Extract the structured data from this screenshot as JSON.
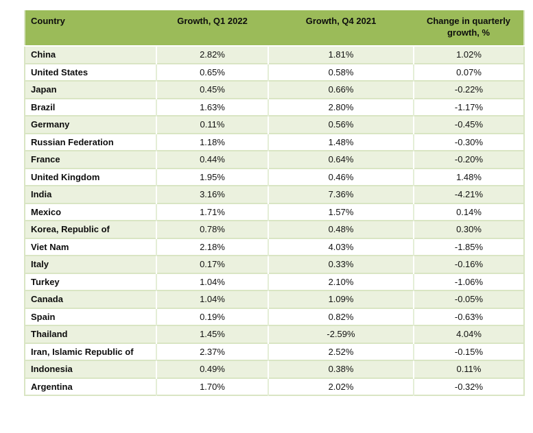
{
  "table": {
    "columns": [
      {
        "label": "Country"
      },
      {
        "label": "Growth, Q1 2022"
      },
      {
        "label": "Growth, Q4 2021"
      },
      {
        "label": "Change in quarterly growth, %"
      }
    ],
    "rows": [
      {
        "country": "China",
        "q1_2022": "2.82%",
        "q4_2021": "1.81%",
        "change": "1.02%"
      },
      {
        "country": "United States",
        "q1_2022": "0.65%",
        "q4_2021": "0.58%",
        "change": "0.07%"
      },
      {
        "country": "Japan",
        "q1_2022": "0.45%",
        "q4_2021": "0.66%",
        "change": "-0.22%"
      },
      {
        "country": "Brazil",
        "q1_2022": "1.63%",
        "q4_2021": "2.80%",
        "change": "-1.17%"
      },
      {
        "country": "Germany",
        "q1_2022": "0.11%",
        "q4_2021": "0.56%",
        "change": "-0.45%"
      },
      {
        "country": "Russian Federation",
        "q1_2022": "1.18%",
        "q4_2021": "1.48%",
        "change": "-0.30%"
      },
      {
        "country": "France",
        "q1_2022": "0.44%",
        "q4_2021": "0.64%",
        "change": "-0.20%"
      },
      {
        "country": "United Kingdom",
        "q1_2022": "1.95%",
        "q4_2021": "0.46%",
        "change": "1.48%"
      },
      {
        "country": "India",
        "q1_2022": "3.16%",
        "q4_2021": "7.36%",
        "change": "-4.21%"
      },
      {
        "country": "Mexico",
        "q1_2022": "1.71%",
        "q4_2021": "1.57%",
        "change": "0.14%"
      },
      {
        "country": "Korea, Republic of",
        "q1_2022": "0.78%",
        "q4_2021": "0.48%",
        "change": "0.30%"
      },
      {
        "country": "Viet Nam",
        "q1_2022": "2.18%",
        "q4_2021": "4.03%",
        "change": "-1.85%"
      },
      {
        "country": "Italy",
        "q1_2022": "0.17%",
        "q4_2021": "0.33%",
        "change": "-0.16%"
      },
      {
        "country": "Turkey",
        "q1_2022": "1.04%",
        "q4_2021": "2.10%",
        "change": "-1.06%"
      },
      {
        "country": "Canada",
        "q1_2022": "1.04%",
        "q4_2021": "1.09%",
        "change": "-0.05%"
      },
      {
        "country": "Spain",
        "q1_2022": "0.19%",
        "q4_2021": "0.82%",
        "change": "-0.63%"
      },
      {
        "country": "Thailand",
        "q1_2022": "1.45%",
        "q4_2021": "-2.59%",
        "change": "4.04%"
      },
      {
        "country": "Iran, Islamic Republic of",
        "q1_2022": "2.37%",
        "q4_2021": "2.52%",
        "change": "-0.15%"
      },
      {
        "country": "Indonesia",
        "q1_2022": "0.49%",
        "q4_2021": "0.38%",
        "change": "0.11%"
      },
      {
        "country": "Argentina",
        "q1_2022": "1.70%",
        "q4_2021": "2.02%",
        "change": "-0.32%"
      }
    ]
  },
  "colors": {
    "header_bg": "#9bbb59",
    "row_shaded_bg": "#ebf1de",
    "row_plain_bg": "#ffffff",
    "grid_line": "#d9e5c3",
    "shaded_row_vline": "#ffffff",
    "plain_row_vline": "#e4eed6",
    "text": "#111111"
  },
  "chart_data": {
    "type": "table",
    "title": "",
    "columns": [
      "Country",
      "Growth, Q1 2022",
      "Growth, Q4 2021",
      "Change in quarterly growth, %"
    ],
    "categories": [
      "China",
      "United States",
      "Japan",
      "Brazil",
      "Germany",
      "Russian Federation",
      "France",
      "United Kingdom",
      "India",
      "Mexico",
      "Korea, Republic of",
      "Viet Nam",
      "Italy",
      "Turkey",
      "Canada",
      "Spain",
      "Thailand",
      "Iran, Islamic Republic of",
      "Indonesia",
      "Argentina"
    ],
    "series": [
      {
        "name": "Growth, Q1 2022",
        "unit": "%",
        "values": [
          2.82,
          0.65,
          0.45,
          1.63,
          0.11,
          1.18,
          0.44,
          1.95,
          3.16,
          1.71,
          0.78,
          2.18,
          0.17,
          1.04,
          1.04,
          0.19,
          1.45,
          2.37,
          0.49,
          1.7
        ]
      },
      {
        "name": "Growth, Q4 2021",
        "unit": "%",
        "values": [
          1.81,
          0.58,
          0.66,
          2.8,
          0.56,
          1.48,
          0.64,
          0.46,
          7.36,
          1.57,
          0.48,
          4.03,
          0.33,
          2.1,
          1.09,
          0.82,
          -2.59,
          2.52,
          0.38,
          2.02
        ]
      },
      {
        "name": "Change in quarterly growth, %",
        "unit": "%",
        "values": [
          1.02,
          0.07,
          -0.22,
          -1.17,
          -0.45,
          -0.3,
          -0.2,
          1.48,
          -4.21,
          0.14,
          0.3,
          -1.85,
          -0.16,
          -1.06,
          -0.05,
          -0.63,
          4.04,
          -0.15,
          0.11,
          -0.32
        ]
      }
    ]
  }
}
